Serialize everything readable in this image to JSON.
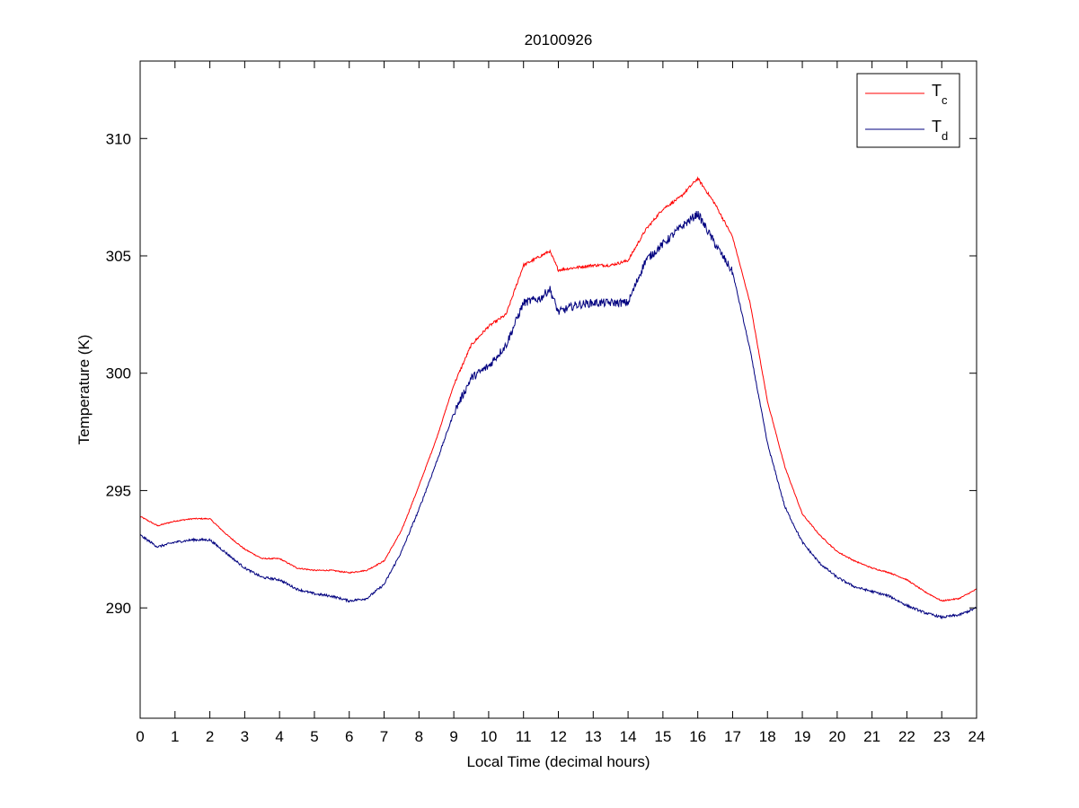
{
  "chart_data": {
    "type": "line",
    "title": "20100926",
    "xlabel": "Local Time (decimal hours)",
    "ylabel": "Temperature (K)",
    "xlim": [
      0,
      24
    ],
    "ylim": [
      285.3,
      313.3
    ],
    "xticks": [
      0,
      1,
      2,
      3,
      4,
      5,
      6,
      7,
      8,
      9,
      10,
      11,
      12,
      13,
      14,
      15,
      16,
      17,
      18,
      19,
      20,
      21,
      22,
      23,
      24
    ],
    "yticks": [
      290,
      295,
      300,
      305,
      310
    ],
    "grid": false,
    "legend_position": "top-right",
    "series": [
      {
        "name": "Tc",
        "legend_main": "T",
        "legend_sub": "c",
        "color": "#ff0000",
        "x": [
          0,
          0.5,
          1,
          1.5,
          2,
          2.5,
          3,
          3.5,
          4,
          4.5,
          5,
          5.5,
          6,
          6.5,
          7,
          7.5,
          8,
          8.5,
          9,
          9.5,
          10,
          10.5,
          11,
          11.5,
          11.75,
          12,
          12.5,
          13,
          13.5,
          14,
          14.5,
          15,
          15.5,
          16,
          16.5,
          17,
          17.5,
          18,
          18.5,
          19,
          19.5,
          20,
          20.5,
          21,
          21.5,
          22,
          22.5,
          23,
          23.5,
          24
        ],
        "y": [
          293.9,
          293.5,
          293.7,
          293.8,
          293.8,
          293.1,
          292.5,
          292.1,
          292.1,
          291.7,
          291.6,
          291.6,
          291.5,
          291.6,
          292.0,
          293.3,
          295.2,
          297.2,
          299.5,
          301.2,
          302.0,
          302.5,
          304.6,
          305.0,
          305.2,
          304.4,
          304.5,
          304.6,
          304.6,
          304.8,
          306.1,
          307.0,
          307.5,
          308.3,
          307.2,
          305.8,
          303.0,
          298.8,
          296.0,
          294.0,
          293.1,
          292.4,
          292.0,
          291.7,
          291.5,
          291.2,
          290.7,
          290.3,
          290.4,
          290.8
        ]
      },
      {
        "name": "Td",
        "legend_main": "T",
        "legend_sub": "d",
        "color": "#00007f",
        "x": [
          0,
          0.5,
          1,
          1.5,
          2,
          2.5,
          3,
          3.5,
          4,
          4.5,
          5,
          5.5,
          6,
          6.5,
          7,
          7.5,
          8,
          8.5,
          9,
          9.5,
          10,
          10.5,
          11,
          11.5,
          11.75,
          12,
          12.5,
          13,
          13.5,
          14,
          14.5,
          15,
          15.5,
          16,
          16.5,
          17,
          17.5,
          18,
          18.5,
          19,
          19.5,
          20,
          20.5,
          21,
          21.5,
          22,
          22.5,
          23,
          23.5,
          24
        ],
        "y": [
          293.1,
          292.6,
          292.8,
          292.9,
          292.9,
          292.3,
          291.7,
          291.3,
          291.2,
          290.8,
          290.6,
          290.5,
          290.3,
          290.4,
          291.0,
          292.4,
          294.2,
          296.2,
          298.3,
          299.8,
          300.3,
          301.2,
          303.0,
          303.2,
          303.6,
          302.6,
          302.9,
          303.0,
          303.0,
          303.0,
          304.8,
          305.5,
          306.2,
          306.8,
          305.5,
          304.3,
          301.0,
          297.0,
          294.3,
          292.8,
          291.9,
          291.3,
          290.9,
          290.7,
          290.5,
          290.1,
          289.8,
          289.6,
          289.7,
          290.0
        ]
      }
    ]
  }
}
